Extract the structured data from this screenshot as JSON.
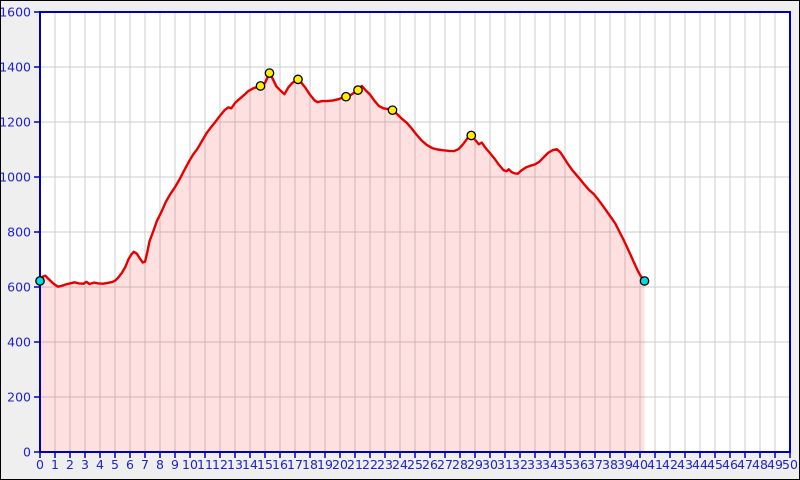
{
  "chart_data": {
    "type": "area",
    "title": "",
    "xlabel": "",
    "ylabel": "",
    "xlim": [
      0,
      50
    ],
    "ylim": [
      0,
      1600
    ],
    "grid": true,
    "legend": "none",
    "x_tick_labels": [
      "0",
      "1",
      "2",
      "3",
      "4",
      "5",
      "6",
      "7",
      "8",
      "9",
      "10",
      "11",
      "12",
      "13",
      "14",
      "15",
      "16",
      "17",
      "18",
      "19",
      "20",
      "21",
      "22",
      "23",
      "24",
      "25",
      "26",
      "27",
      "28",
      "29",
      "30",
      "31",
      "32",
      "33",
      "34",
      "35",
      "36",
      "37",
      "38",
      "39",
      "40",
      "41",
      "42",
      "43",
      "44",
      "45",
      "46",
      "47",
      "48",
      "49",
      "50"
    ],
    "y_tick_labels": [
      "0",
      "200",
      "400",
      "600",
      "800",
      "1000",
      "1200",
      "1400",
      "1600"
    ],
    "series": [
      {
        "name": "elevation_profile_m",
        "points": [
          [
            0.0,
            622
          ],
          [
            0.15,
            637
          ],
          [
            0.35,
            641
          ],
          [
            0.55,
            630
          ],
          [
            0.8,
            617
          ],
          [
            1.0,
            608
          ],
          [
            1.2,
            601
          ],
          [
            1.45,
            604
          ],
          [
            1.7,
            609
          ],
          [
            2.0,
            613
          ],
          [
            2.3,
            617
          ],
          [
            2.6,
            613
          ],
          [
            2.9,
            612
          ],
          [
            3.1,
            619
          ],
          [
            3.3,
            611
          ],
          [
            3.6,
            616
          ],
          [
            3.9,
            613
          ],
          [
            4.2,
            612
          ],
          [
            4.5,
            615
          ],
          [
            4.8,
            618
          ],
          [
            5.0,
            623
          ],
          [
            5.2,
            633
          ],
          [
            5.45,
            651
          ],
          [
            5.7,
            674
          ],
          [
            5.9,
            701
          ],
          [
            6.1,
            719
          ],
          [
            6.25,
            728
          ],
          [
            6.45,
            721
          ],
          [
            6.65,
            704
          ],
          [
            6.85,
            689
          ],
          [
            7.0,
            692
          ],
          [
            7.15,
            726
          ],
          [
            7.3,
            766
          ],
          [
            7.55,
            803
          ],
          [
            7.8,
            841
          ],
          [
            8.1,
            874
          ],
          [
            8.4,
            911
          ],
          [
            8.7,
            939
          ],
          [
            9.0,
            963
          ],
          [
            9.3,
            991
          ],
          [
            9.6,
            1023
          ],
          [
            9.9,
            1053
          ],
          [
            10.2,
            1081
          ],
          [
            10.5,
            1103
          ],
          [
            10.8,
            1131
          ],
          [
            11.1,
            1159
          ],
          [
            11.4,
            1181
          ],
          [
            11.7,
            1201
          ],
          [
            12.0,
            1223
          ],
          [
            12.3,
            1243
          ],
          [
            12.55,
            1253
          ],
          [
            12.75,
            1250
          ],
          [
            13.0,
            1269
          ],
          [
            13.3,
            1284
          ],
          [
            13.6,
            1298
          ],
          [
            13.9,
            1313
          ],
          [
            14.2,
            1322
          ],
          [
            14.45,
            1327
          ],
          [
            14.7,
            1331
          ],
          [
            15.0,
            1342
          ],
          [
            15.3,
            1378
          ],
          [
            15.5,
            1359
          ],
          [
            15.75,
            1330
          ],
          [
            16.0,
            1316
          ],
          [
            16.3,
            1301
          ],
          [
            16.55,
            1326
          ],
          [
            16.8,
            1341
          ],
          [
            17.0,
            1349
          ],
          [
            17.2,
            1355
          ],
          [
            17.45,
            1341
          ],
          [
            17.7,
            1324
          ],
          [
            18.0,
            1299
          ],
          [
            18.3,
            1279
          ],
          [
            18.5,
            1272
          ],
          [
            18.8,
            1276
          ],
          [
            19.1,
            1276
          ],
          [
            19.5,
            1278
          ],
          [
            19.9,
            1283
          ],
          [
            20.15,
            1288
          ],
          [
            20.4,
            1292
          ],
          [
            20.7,
            1298
          ],
          [
            20.95,
            1307
          ],
          [
            21.2,
            1316
          ],
          [
            21.45,
            1331
          ],
          [
            21.7,
            1316
          ],
          [
            22.0,
            1300
          ],
          [
            22.3,
            1277
          ],
          [
            22.6,
            1258
          ],
          [
            22.9,
            1250
          ],
          [
            23.2,
            1247
          ],
          [
            23.5,
            1243
          ],
          [
            23.8,
            1229
          ],
          [
            24.1,
            1213
          ],
          [
            24.45,
            1197
          ],
          [
            24.8,
            1175
          ],
          [
            25.1,
            1154
          ],
          [
            25.45,
            1132
          ],
          [
            25.8,
            1116
          ],
          [
            26.15,
            1105
          ],
          [
            26.5,
            1100
          ],
          [
            26.9,
            1097
          ],
          [
            27.3,
            1095
          ],
          [
            27.6,
            1094
          ],
          [
            27.9,
            1101
          ],
          [
            28.2,
            1119
          ],
          [
            28.5,
            1141
          ],
          [
            28.75,
            1151
          ],
          [
            29.0,
            1136
          ],
          [
            29.25,
            1119
          ],
          [
            29.45,
            1125
          ],
          [
            29.7,
            1106
          ],
          [
            30.0,
            1087
          ],
          [
            30.3,
            1067
          ],
          [
            30.6,
            1044
          ],
          [
            30.9,
            1025
          ],
          [
            31.1,
            1021
          ],
          [
            31.25,
            1028
          ],
          [
            31.45,
            1017
          ],
          [
            31.65,
            1013
          ],
          [
            31.85,
            1012
          ],
          [
            32.1,
            1024
          ],
          [
            32.4,
            1035
          ],
          [
            32.7,
            1041
          ],
          [
            33.0,
            1046
          ],
          [
            33.3,
            1056
          ],
          [
            33.6,
            1073
          ],
          [
            33.9,
            1089
          ],
          [
            34.2,
            1098
          ],
          [
            34.45,
            1101
          ],
          [
            34.7,
            1089
          ],
          [
            34.95,
            1068
          ],
          [
            35.2,
            1047
          ],
          [
            35.5,
            1024
          ],
          [
            35.75,
            1008
          ],
          [
            36.0,
            992
          ],
          [
            36.3,
            972
          ],
          [
            36.6,
            953
          ],
          [
            36.9,
            939
          ],
          [
            37.2,
            919
          ],
          [
            37.5,
            897
          ],
          [
            37.8,
            874
          ],
          [
            38.1,
            851
          ],
          [
            38.35,
            831
          ],
          [
            38.6,
            804
          ],
          [
            38.85,
            777
          ],
          [
            39.1,
            749
          ],
          [
            39.35,
            719
          ],
          [
            39.6,
            689
          ],
          [
            39.85,
            659
          ],
          [
            40.05,
            640
          ],
          [
            40.3,
            622
          ]
        ]
      }
    ],
    "peak_markers": [
      [
        14.7,
        1331
      ],
      [
        15.3,
        1378
      ],
      [
        17.2,
        1355
      ],
      [
        20.4,
        1292
      ],
      [
        21.2,
        1316
      ],
      [
        23.5,
        1243
      ],
      [
        28.75,
        1151
      ]
    ],
    "start_marker": [
      0.0,
      622
    ],
    "end_marker": [
      40.3,
      622
    ]
  },
  "colors": {
    "outer_bg": "#efefef",
    "plot_bg": "#ffffff",
    "grid": "#cccccc",
    "axis_frame": "#0000bb",
    "tick": "#0000bb",
    "tick_label": "#2222cc",
    "line": "#e60000",
    "fill": "rgba(255,32,32,0.14)",
    "peak_marker_fill": "#ffee00",
    "endpoint_marker_fill": "#00dddd",
    "marker_stroke": "#000000"
  }
}
